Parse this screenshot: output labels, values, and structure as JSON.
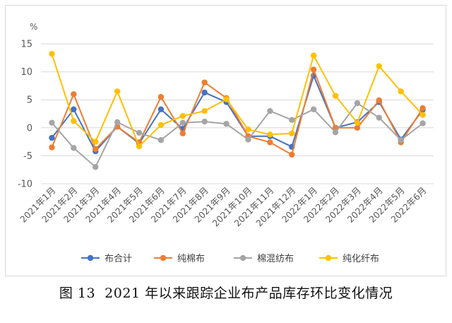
{
  "caption": "图 13  2021 年以来跟踪企业布产品库存环比变化情况",
  "colors": {
    "series_1": "#4472c4",
    "series_2": "#ed7d31",
    "series_3": "#a5a5a5",
    "series_4": "#ffc000",
    "gridline": "#d9d9d9",
    "axis_text": "#595959"
  },
  "chart_data": {
    "type": "line",
    "title": "",
    "xlabel": "",
    "ylabel": "%",
    "ylim": [
      -10,
      15
    ],
    "yticks": [
      15,
      10,
      5,
      0,
      -5,
      -10
    ],
    "grid": true,
    "legend_position": "bottom",
    "categories": [
      "2021年1月",
      "2021年2月",
      "2021年3月",
      "2021年4月",
      "2021年5月",
      "2021年6月",
      "2021年7月",
      "2021年8月",
      "2021年9月",
      "2021年10月",
      "2021年11月",
      "2021年12月",
      "2022年1月",
      "2022年2月",
      "2022年3月",
      "2022年4月",
      "2022年5月",
      "2022年6月"
    ],
    "series": [
      {
        "name": "布合计",
        "values": [
          -1.8,
          3.3,
          -4.2,
          0.2,
          -2.8,
          3.3,
          -0.2,
          6.3,
          4.6,
          -1.5,
          -1.5,
          -3.4,
          9.3,
          0.0,
          1.0,
          4.6,
          -2.1,
          3.2
        ]
      },
      {
        "name": "纯棉布",
        "values": [
          -3.5,
          6.0,
          -3.8,
          0.2,
          -2.6,
          5.5,
          -1.0,
          8.1,
          5.3,
          -1.5,
          -2.6,
          -4.8,
          10.4,
          0.0,
          0.0,
          4.9,
          -2.6,
          3.5
        ]
      },
      {
        "name": "棉混纺布",
        "values": [
          0.9,
          -3.6,
          -7.0,
          1.0,
          -0.9,
          -2.2,
          0.9,
          1.1,
          0.7,
          -2.1,
          3.0,
          1.4,
          3.3,
          -0.8,
          4.4,
          1.8,
          -2.2,
          0.8
        ]
      },
      {
        "name": "纯化纤布",
        "values": [
          13.2,
          1.2,
          -2.5,
          6.5,
          -3.3,
          0.5,
          2.1,
          3.0,
          5.1,
          -0.3,
          -1.2,
          -1.0,
          12.9,
          5.7,
          0.9,
          11.0,
          6.5,
          2.3
        ]
      }
    ]
  }
}
